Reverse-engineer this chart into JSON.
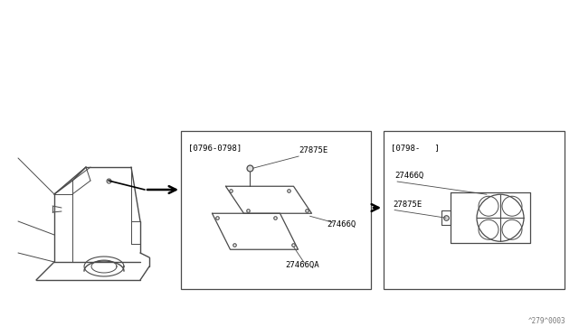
{
  "bg_color": "#ffffff",
  "line_color": "#4a4a4a",
  "watermark": "^279^0003",
  "box1_label": "[0796-0798]",
  "box1_parts": [
    "27875E",
    "27466Q",
    "27466QA"
  ],
  "box2_label": "[0798-   ]",
  "box2_parts": [
    "27466Q",
    "27875E"
  ]
}
